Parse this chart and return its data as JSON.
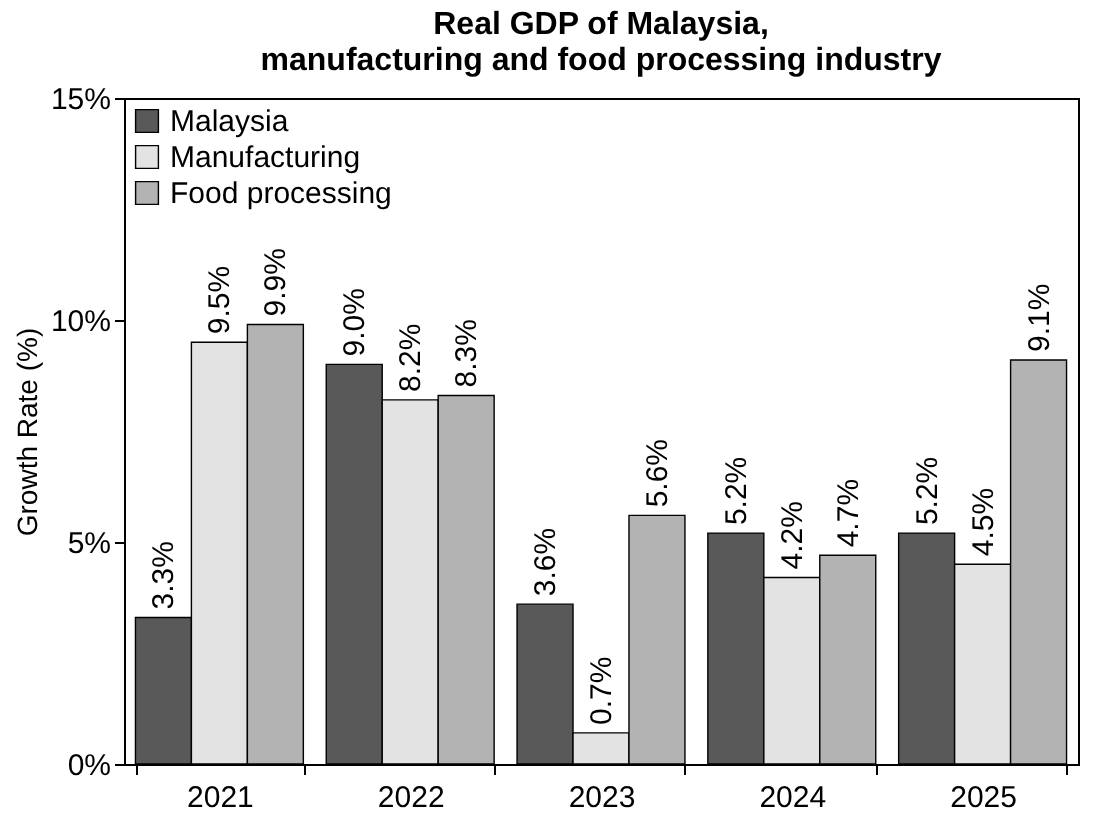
{
  "chart_data": {
    "type": "bar",
    "title": "Real GDP of Malaysia,\nmanufacturing and food processing industry",
    "ylabel": "Growth Rate (%)",
    "categories": [
      "2021",
      "2022",
      "2023",
      "2024",
      "2025"
    ],
    "series": [
      {
        "name": "Malaysia",
        "color": "#595959",
        "values": [
          3.3,
          9.0,
          3.6,
          5.2,
          5.2
        ],
        "value_labels": [
          "3.3%",
          "9.0%",
          "3.6%",
          "5.2%",
          "5.2%"
        ]
      },
      {
        "name": "Manufacturing",
        "color": "#e3e3e3",
        "values": [
          9.5,
          8.2,
          0.7,
          4.2,
          4.5
        ],
        "value_labels": [
          "9.5%",
          "8.2%",
          "0.7%",
          "4.2%",
          "4.5%"
        ]
      },
      {
        "name": "Food processing",
        "color": "#b3b3b3",
        "values": [
          9.9,
          8.3,
          5.6,
          4.7,
          9.1
        ],
        "value_labels": [
          "9.9%",
          "8.3%",
          "5.6%",
          "4.7%",
          "9.1%"
        ]
      }
    ],
    "ylim": [
      0,
      15
    ],
    "yticks": [
      {
        "value": 0,
        "label": "0%"
      },
      {
        "value": 5,
        "label": "5%"
      },
      {
        "value": 10,
        "label": "10%"
      },
      {
        "value": 15,
        "label": "15%"
      }
    ],
    "grid": false,
    "legend": "top left"
  }
}
